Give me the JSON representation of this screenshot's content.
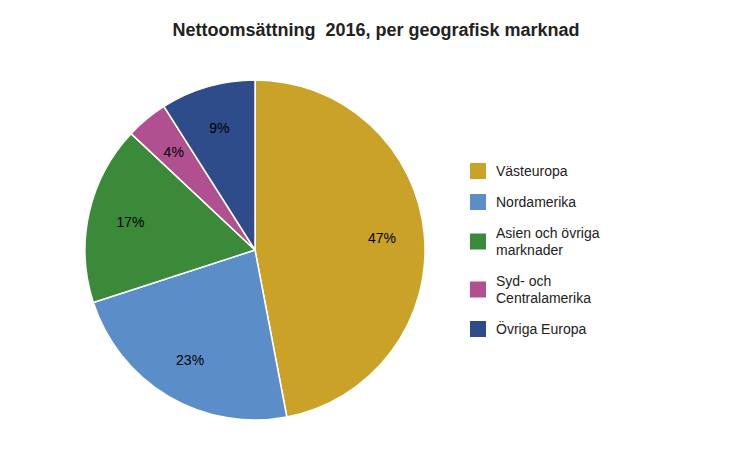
{
  "chart_data": {
    "type": "pie",
    "title": "Nettoomsättning  2016, per geografisk marknad",
    "categories": [
      "Västeuropa",
      "Nordamerika",
      "Asien och övriga\nmarknader",
      "Syd- och\nCentralamerika",
      "Övriga Europa"
    ],
    "values": [
      47,
      23,
      17,
      4,
      9
    ],
    "value_labels": [
      "47%",
      "23%",
      "17%",
      "4%",
      "9%"
    ],
    "colors": [
      "#C9A227",
      "#5B8EC9",
      "#3A8A3A",
      "#B05090",
      "#2E4B8A"
    ],
    "data_labels": true,
    "legend": "right"
  }
}
